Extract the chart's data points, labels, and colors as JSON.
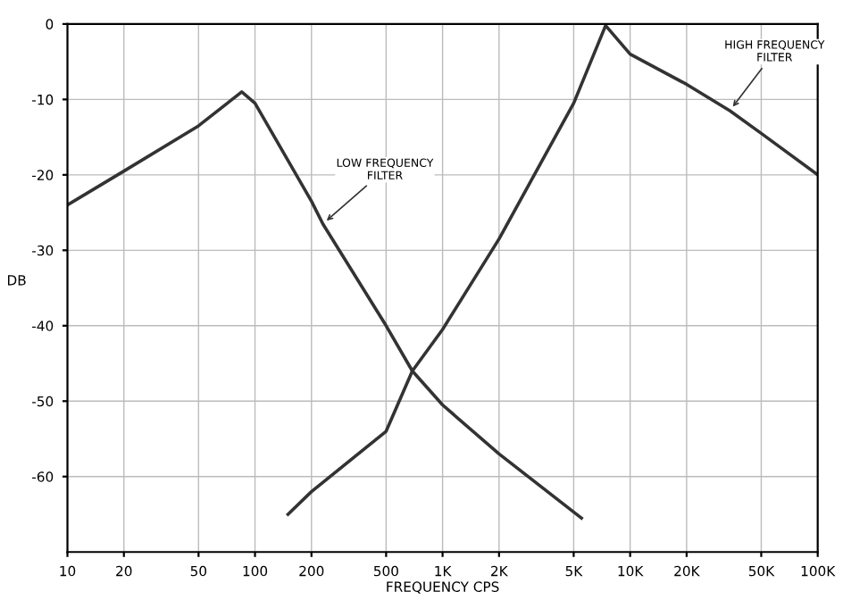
{
  "chart_data": {
    "type": "line",
    "xlabel": "FREQUENCY CPS",
    "ylabel": "DB",
    "log": "x",
    "xlim": [
      10,
      100000
    ],
    "ylim": [
      -70,
      0
    ],
    "xticks": [
      {
        "value": 10,
        "label": "10"
      },
      {
        "value": 20,
        "label": "20"
      },
      {
        "value": 50,
        "label": "50"
      },
      {
        "value": 100,
        "label": "100"
      },
      {
        "value": 200,
        "label": "200"
      },
      {
        "value": 500,
        "label": "500"
      },
      {
        "value": 1000,
        "label": "1K"
      },
      {
        "value": 2000,
        "label": "2K"
      },
      {
        "value": 5000,
        "label": "5K"
      },
      {
        "value": 10000,
        "label": "10K"
      },
      {
        "value": 20000,
        "label": "20K"
      },
      {
        "value": 50000,
        "label": "50K"
      },
      {
        "value": 100000,
        "label": "100K"
      }
    ],
    "yticks": [
      0,
      -10,
      -20,
      -30,
      -40,
      -50,
      -60
    ],
    "grid": true,
    "legend": false,
    "line_style": "solid",
    "marker": "none",
    "series": [
      {
        "color": "#333333",
        "x": [
          10,
          20,
          50,
          85,
          100,
          200,
          230,
          500,
          690,
          1000,
          2000,
          5500
        ],
        "values": [
          -24,
          -19.5,
          -13.5,
          -9,
          -10.5,
          -23.5,
          -26.5,
          -40,
          -46,
          -50.5,
          -57,
          -65.5
        ]
      },
      {
        "color": "#333333",
        "x": [
          150,
          200,
          500,
          690,
          1000,
          2000,
          5000,
          7400,
          10000,
          20000,
          34000,
          50000,
          100000
        ],
        "values": [
          -65,
          -62,
          -54,
          -46,
          -40.5,
          -28.5,
          -10.5,
          -0.2,
          -4,
          -8,
          -11.5,
          -14.5,
          -20
        ]
      }
    ],
    "annotations": [
      {
        "text": "LOW FREQUENCY\nFILTER",
        "x": 230,
        "y": -26.5
      },
      {
        "text": "HIGH FREQUENCY\nFILTER",
        "x": 34000,
        "y": -11.5
      }
    ]
  }
}
